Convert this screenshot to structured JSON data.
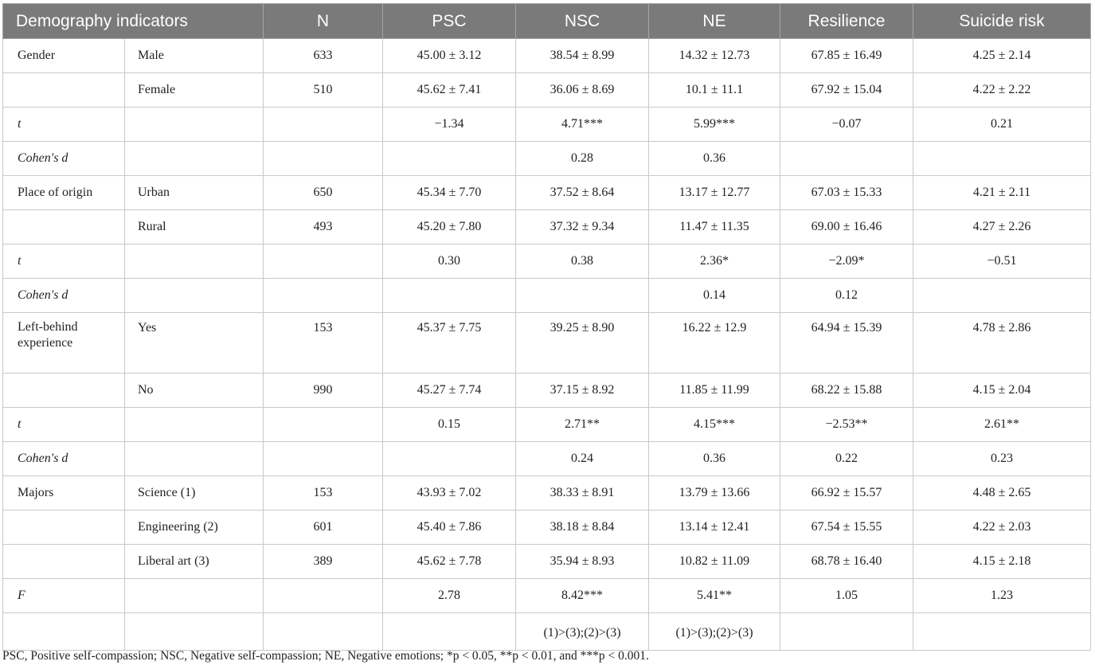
{
  "table": {
    "headers": [
      "Demography indicators",
      "N",
      "PSC",
      "NSC",
      "NE",
      "Resilience",
      "Suicide risk"
    ],
    "rows": [
      {
        "group": "Gender",
        "sub": "Male",
        "n": "633",
        "psc": "45.00 ± 3.12",
        "nsc": "38.54 ± 8.99",
        "ne": "14.32 ± 12.73",
        "res": "67.85 ± 16.49",
        "sr": "4.25 ± 2.14"
      },
      {
        "group": "",
        "sub": "Female",
        "n": "510",
        "psc": "45.62 ± 7.41",
        "nsc": "36.06 ± 8.69",
        "ne": "10.1 ± 11.1",
        "res": "67.92 ± 15.04",
        "sr": "4.22 ± 2.22"
      },
      {
        "group": "t",
        "sub": "",
        "n": "",
        "psc": "−1.34",
        "nsc": "4.71***",
        "ne": "5.99***",
        "res": "−0.07",
        "sr": "0.21"
      },
      {
        "group": "Cohen's d",
        "sub": "",
        "n": "",
        "psc": "",
        "nsc": "0.28",
        "ne": "0.36",
        "res": "",
        "sr": ""
      },
      {
        "group": "Place of origin",
        "sub": "Urban",
        "n": "650",
        "psc": "45.34 ± 7.70",
        "nsc": "37.52 ± 8.64",
        "ne": "13.17 ± 12.77",
        "res": "67.03 ± 15.33",
        "sr": "4.21 ± 2.11"
      },
      {
        "group": "",
        "sub": "Rural",
        "n": "493",
        "psc": "45.20 ± 7.80",
        "nsc": "37.32 ± 9.34",
        "ne": "11.47 ± 11.35",
        "res": "69.00 ± 16.46",
        "sr": "4.27 ± 2.26"
      },
      {
        "group": "t",
        "sub": "",
        "n": "",
        "psc": "0.30",
        "nsc": "0.38",
        "ne": "2.36*",
        "res": "−2.09*",
        "sr": "−0.51"
      },
      {
        "group": "Cohen's d",
        "sub": "",
        "n": "",
        "psc": "",
        "nsc": "",
        "ne": "0.14",
        "res": "0.12",
        "sr": ""
      },
      {
        "group": "Left-behind experience",
        "sub": "Yes",
        "n": "153",
        "psc": "45.37 ± 7.75",
        "nsc": "39.25 ± 8.90",
        "ne": "16.22 ± 12.9",
        "res": "64.94 ± 15.39",
        "sr": "4.78 ± 2.86"
      },
      {
        "group": "",
        "sub": "No",
        "n": "990",
        "psc": "45.27 ± 7.74",
        "nsc": "37.15 ± 8.92",
        "ne": "11.85 ± 11.99",
        "res": "68.22 ± 15.88",
        "sr": "4.15 ± 2.04"
      },
      {
        "group": "t",
        "sub": "",
        "n": "",
        "psc": "0.15",
        "nsc": "2.71**",
        "ne": "4.15***",
        "res": "−2.53**",
        "sr": "2.61**"
      },
      {
        "group": "Cohen's d",
        "sub": "",
        "n": "",
        "psc": "",
        "nsc": "0.24",
        "ne": "0.36",
        "res": "0.22",
        "sr": "0.23"
      },
      {
        "group": "Majors",
        "sub": "Science (1)",
        "n": "153",
        "psc": "43.93 ± 7.02",
        "nsc": "38.33 ± 8.91",
        "ne": "13.79 ± 13.66",
        "res": "66.92 ± 15.57",
        "sr": "4.48 ± 2.65"
      },
      {
        "group": "",
        "sub": "Engineering (2)",
        "n": "601",
        "psc": "45.40 ± 7.86",
        "nsc": "38.18 ± 8.84",
        "ne": "13.14 ± 12.41",
        "res": "67.54 ± 15.55",
        "sr": "4.22 ± 2.03"
      },
      {
        "group": "",
        "sub": "Liberal art (3)",
        "n": "389",
        "psc": "45.62 ± 7.78",
        "nsc": "35.94 ± 8.93",
        "ne": "10.82 ± 11.09",
        "res": "68.78 ± 16.40",
        "sr": "4.15 ± 2.18"
      },
      {
        "group": "F",
        "sub": "",
        "n": "",
        "psc": "2.78",
        "nsc": "8.42***",
        "ne": "5.41**",
        "res": "1.05",
        "sr": "1.23"
      },
      {
        "group": "",
        "sub": "",
        "n": "",
        "psc": "",
        "nsc": "(1)>(3);(2)>(3)",
        "ne": "(1)>(3);(2)>(3)",
        "res": "",
        "sr": ""
      }
    ]
  },
  "footnote": "PSC, Positive self-compassion; NSC, Negative self-compassion; NE, Negative emotions; *p < 0.05, **p < 0.01, and ***p < 0.001."
}
